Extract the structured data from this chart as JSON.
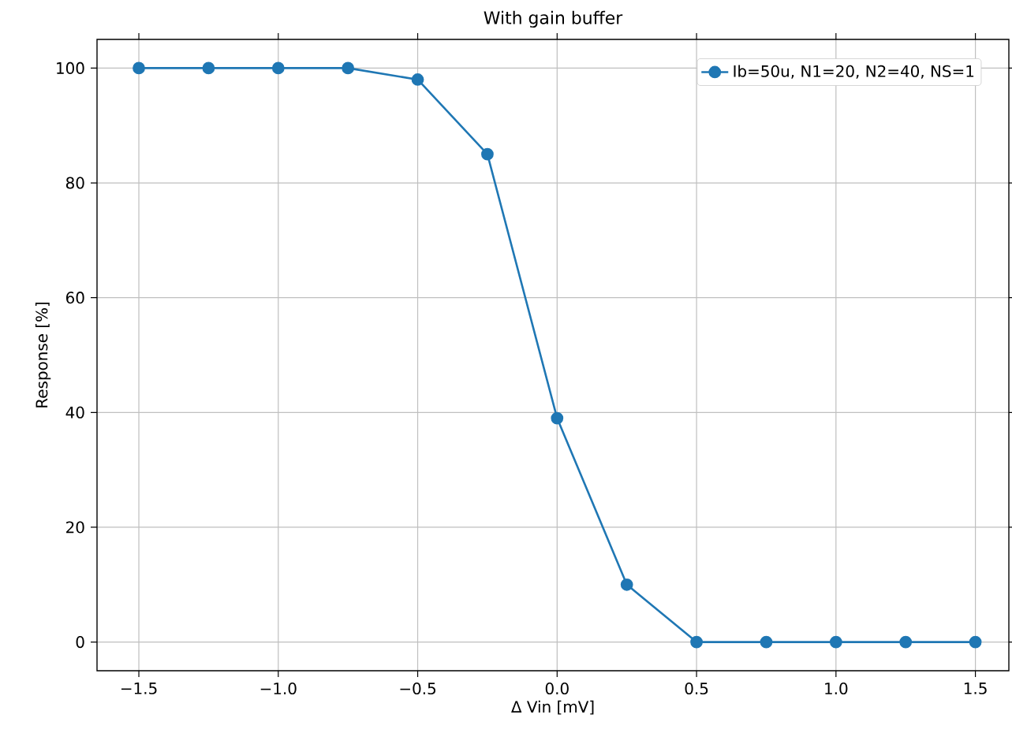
{
  "chart_data": {
    "type": "line",
    "title": "With gain buffer",
    "xlabel": "Δ Vin [mV]",
    "ylabel": "Response [%]",
    "x": [
      -1.5,
      -1.25,
      -1.0,
      -0.75,
      -0.5,
      -0.25,
      0.0,
      0.25,
      0.5,
      0.75,
      1.0,
      1.25,
      1.5
    ],
    "series": [
      {
        "name": "Ib=50u, N1=20, N2=40, NS=1",
        "color": "#1f77b4",
        "values": [
          100,
          100,
          100,
          100,
          98,
          85,
          39,
          10,
          0,
          0,
          0,
          0,
          0
        ]
      }
    ],
    "xlim": [
      -1.65,
      1.62
    ],
    "ylim": [
      -5,
      105
    ],
    "xticks": [
      {
        "value": -1.5,
        "label": "−1.5"
      },
      {
        "value": -1.0,
        "label": "−1.0"
      },
      {
        "value": -0.5,
        "label": "−0.5"
      },
      {
        "value": 0.0,
        "label": "0.0"
      },
      {
        "value": 0.5,
        "label": "0.5"
      },
      {
        "value": 1.0,
        "label": "1.0"
      },
      {
        "value": 1.5,
        "label": "1.5"
      }
    ],
    "yticks": [
      0,
      20,
      40,
      60,
      80,
      100
    ],
    "grid": true,
    "legend": "top right",
    "marker": "circle",
    "line_style": "solid"
  }
}
